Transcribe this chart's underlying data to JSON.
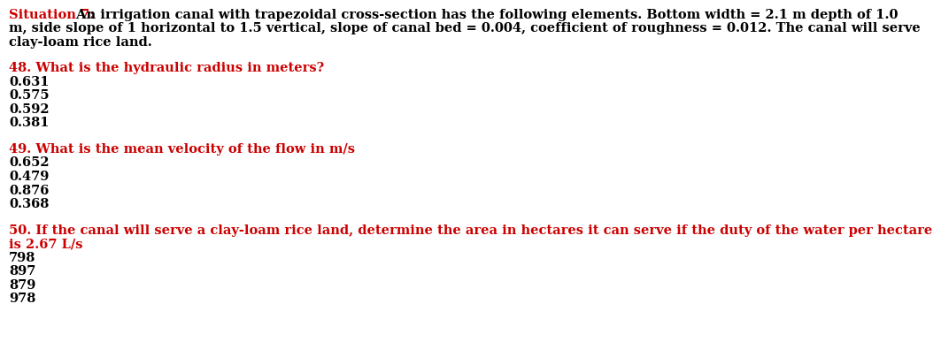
{
  "bg_color": "#ffffff",
  "situation_label": "Situation 7:",
  "situation_label_color": "#cc0000",
  "situation_body": " An irrigation canal with trapezoidal cross-section has the following elements. Bottom width = 2.1 m depth of 1.0",
  "situation_line2": "m, side slope of 1 horizontal to 1.5 vertical, slope of canal bed = 0.004, coefficient of roughness = 0.012. The canal will serve",
  "situation_line3": "clay-loam rice land.",
  "situation_text_color": "#000000",
  "q48_question": "48. What is the hydraulic radius in meters?",
  "q48_question_color": "#cc0000",
  "q48_choices": [
    "0.631",
    "0.575",
    "0.592",
    "0.381"
  ],
  "q49_question": "49. What is the mean velocity of the flow in m/s",
  "q49_question_color": "#cc0000",
  "q49_choices": [
    "0.652",
    "0.479",
    "0.876",
    "0.368"
  ],
  "q50_question": "50. If the canal will serve a clay-loam rice land, determine the area in hectares it can serve if the duty of the water per hectare",
  "q50_line2": "is 2.67 L/s",
  "q50_question_color": "#cc0000",
  "q50_choices": [
    "798",
    "897",
    "879",
    "978"
  ],
  "choices_color": "#000000",
  "fontsize": 10.5,
  "font_family": "DejaVu Serif"
}
